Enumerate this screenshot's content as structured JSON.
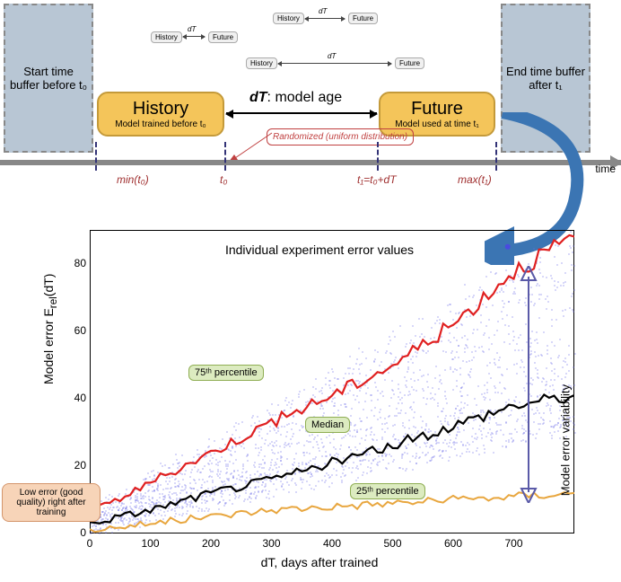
{
  "top": {
    "buffer_left": "Start time buffer before t₀",
    "buffer_right": "End time buffer after t₁",
    "history": {
      "title": "History",
      "sub": "Model trained before t₀"
    },
    "future": {
      "title": "Future",
      "sub": "Model used at time t₁"
    },
    "dt_label_html": "dT",
    "dt_label_rest": ": model age",
    "randomized": "Randomized (uniform distribution)",
    "mini_history": "History",
    "mini_future": "Future",
    "mini_dt": "dT",
    "tick_min": "min(t₀)",
    "tick_t0": "t₀",
    "tick_t1": "t₁=t₀+dT",
    "tick_max": "max(t₁)",
    "time_axis": "time"
  },
  "chart": {
    "type": "scatter+line",
    "title": "Individual experiment error values",
    "xlabel": "dT, days after trained",
    "ylabel": "Model error E_rel(dT)",
    "ylabel_html": "Model error E<sub>rel</sub>(dT)",
    "xlim": [
      0,
      800
    ],
    "ylim": [
      0,
      90
    ],
    "xticks": [
      0,
      100,
      200,
      300,
      400,
      500,
      600,
      700
    ],
    "yticks": [
      0,
      20,
      40,
      60,
      80
    ],
    "x_sample": [
      0,
      100,
      200,
      300,
      400,
      500,
      600,
      700,
      800
    ],
    "p75": {
      "y": [
        6,
        15,
        24,
        33,
        41,
        50,
        62,
        78,
        88
      ],
      "color": "#e02020",
      "width": 2.2,
      "label": "75ᵗʰ percentile"
    },
    "median": {
      "y": [
        3,
        7,
        12,
        16,
        21,
        26,
        32,
        38,
        41
      ],
      "color": "#000000",
      "width": 2.2,
      "label": "Median"
    },
    "p25": {
      "y": [
        1,
        3,
        5,
        7,
        8,
        9,
        10,
        11,
        12
      ],
      "color": "#e8a63e",
      "width": 2.0,
      "label": "25ᵗʰ percentile"
    },
    "scatter": {
      "n": 2200,
      "color": "#6a6ae8",
      "opacity": 0.35
    },
    "var_arrow_label": "Model error variability",
    "callout_left": "Low error (good quality) right after training",
    "annot_colors": {
      "p75": {
        "bg": "#dcebc0",
        "border": "#8fae53"
      },
      "median": {
        "bg": "#dcebc0",
        "border": "#8fae53"
      },
      "p25": {
        "bg": "#dcebc0",
        "border": "#8fae53"
      }
    },
    "curved_arrow_color": "#3b75b3"
  }
}
